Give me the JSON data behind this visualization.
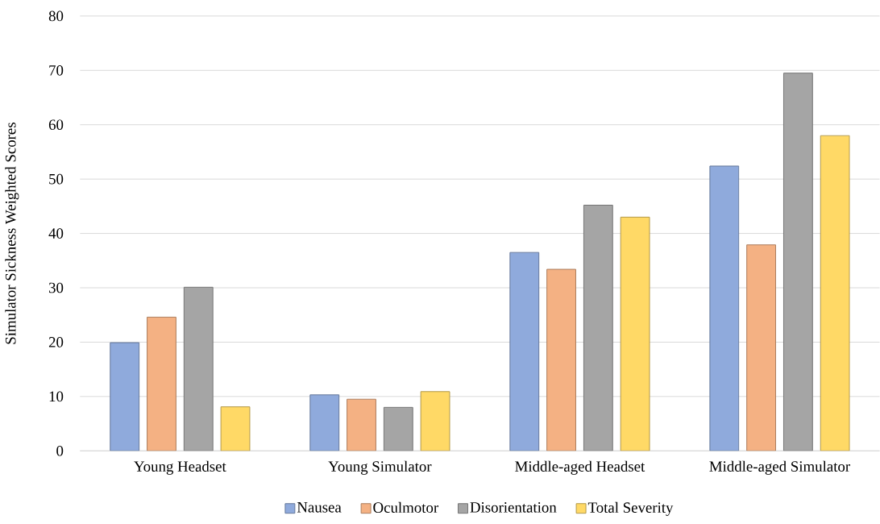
{
  "chart_data": {
    "type": "bar",
    "ylabel": "Simulator Sickness Weighted Scores",
    "categories": [
      "Young Headset",
      "Young Simulator",
      "Middle-aged Headset",
      "Middle-aged Simulator"
    ],
    "series": [
      {
        "name": "Nausea",
        "color": "#8faadc",
        "values": [
          19.9,
          10.3,
          36.5,
          52.4
        ]
      },
      {
        "name": "Oculmotor",
        "color": "#f4b183",
        "values": [
          24.6,
          9.5,
          33.4,
          37.9
        ]
      },
      {
        "name": "Disorientation",
        "color": "#a5a5a5",
        "values": [
          30.1,
          8.0,
          45.2,
          69.5
        ]
      },
      {
        "name": "Total Severity",
        "color": "#ffd966",
        "values": [
          8.1,
          10.9,
          43.0,
          58.0
        ]
      }
    ],
    "ylim": [
      0,
      80
    ],
    "yticks": [
      0,
      10,
      20,
      30,
      40,
      50,
      60,
      70,
      80
    ],
    "grid": "y",
    "legend": "bottom"
  }
}
